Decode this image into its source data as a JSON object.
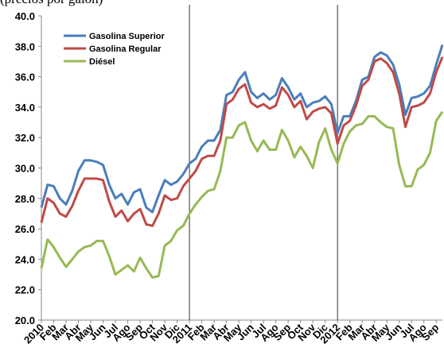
{
  "chart_data": {
    "type": "line",
    "subtitle": "(precios por galón)",
    "categories": [
      "2010",
      null,
      "Feb",
      null,
      "Mar",
      null,
      "Abr",
      null,
      "May",
      null,
      "Jun",
      null,
      "Jul",
      null,
      "Ago",
      null,
      "Sep",
      null,
      "Oct",
      null,
      "Nov",
      null,
      "Dic",
      null,
      "2011",
      null,
      "Feb",
      null,
      "Mar",
      null,
      "Abr",
      null,
      "May",
      null,
      "Jun",
      null,
      "Jul",
      null,
      "Ago",
      null,
      "Sep",
      null,
      "Oct",
      null,
      "Nov",
      null,
      "Dic",
      null,
      "2012",
      null,
      "Feb",
      null,
      "Mar",
      null,
      "Abr",
      null,
      "May",
      null,
      "Jun",
      null,
      "Jul",
      null,
      "Ago",
      null,
      "Sep",
      null
    ],
    "series": [
      {
        "name": "Gasolina Superior",
        "color": "#4a7ebb",
        "values": [
          27.4,
          28.9,
          28.8,
          28.0,
          27.6,
          28.5,
          29.8,
          30.5,
          30.5,
          30.4,
          30.2,
          28.9,
          28.0,
          28.3,
          27.6,
          28.4,
          28.6,
          27.4,
          27.1,
          28.2,
          29.2,
          28.9,
          29.1,
          29.6,
          30.3,
          30.6,
          31.4,
          31.8,
          31.8,
          32.5,
          34.8,
          35.0,
          35.8,
          36.3,
          35.0,
          34.6,
          34.9,
          34.5,
          34.8,
          35.9,
          35.3,
          34.5,
          34.9,
          34.0,
          34.3,
          34.4,
          34.7,
          34.2,
          32.3,
          33.4,
          33.4,
          34.4,
          35.8,
          36.0,
          37.3,
          37.6,
          37.4,
          36.8,
          35.5,
          33.5,
          34.6,
          34.7,
          34.9,
          35.4,
          36.8,
          38.1
        ]
      },
      {
        "name": "Gasolina Regular",
        "color": "#be4b48",
        "values": [
          26.4,
          28.0,
          27.7,
          27.0,
          26.8,
          27.5,
          28.5,
          29.3,
          29.3,
          29.3,
          29.2,
          27.8,
          26.8,
          27.2,
          26.5,
          27.0,
          27.3,
          26.3,
          26.2,
          27.0,
          28.2,
          27.9,
          28.0,
          28.8,
          29.3,
          29.8,
          30.6,
          30.8,
          30.8,
          31.8,
          34.2,
          34.5,
          35.2,
          35.5,
          34.3,
          34.0,
          34.2,
          33.9,
          34.1,
          35.3,
          34.8,
          34.0,
          34.4,
          33.2,
          33.7,
          33.9,
          34.0,
          33.6,
          31.6,
          32.8,
          33.1,
          34.1,
          35.4,
          35.8,
          37.0,
          37.2,
          36.9,
          36.3,
          34.9,
          32.7,
          34.0,
          34.1,
          34.3,
          34.9,
          36.3,
          37.3
        ]
      },
      {
        "name": "Diésel",
        "color": "#98b954",
        "values": [
          23.4,
          25.3,
          24.8,
          24.1,
          23.5,
          24.0,
          24.5,
          24.8,
          24.9,
          25.2,
          25.2,
          24.2,
          23.0,
          23.3,
          23.6,
          23.2,
          24.1,
          23.4,
          22.8,
          22.9,
          24.9,
          25.2,
          25.9,
          26.2,
          27.0,
          27.6,
          28.1,
          28.5,
          28.6,
          29.8,
          32.0,
          32.0,
          32.8,
          33.0,
          31.8,
          31.1,
          31.8,
          31.2,
          31.2,
          32.5,
          31.8,
          30.7,
          31.4,
          30.8,
          30.0,
          31.7,
          32.6,
          31.2,
          30.3,
          31.6,
          32.4,
          32.8,
          32.9,
          33.4,
          33.4,
          33.0,
          32.7,
          32.6,
          30.2,
          28.8,
          28.8,
          29.9,
          30.2,
          31.0,
          33.1,
          33.7
        ]
      }
    ],
    "ylim": [
      20,
      40
    ],
    "yticks": [
      {
        "value": 20,
        "label": "20.0"
      },
      {
        "value": 22,
        "label": "22.0"
      },
      {
        "value": 24,
        "label": "24.0"
      },
      {
        "value": 26,
        "label": "26.0"
      },
      {
        "value": 28,
        "label": "28.0"
      },
      {
        "value": 30,
        "label": "30.0"
      },
      {
        "value": 32,
        "label": "32.0"
      },
      {
        "value": 34,
        "label": "34.0"
      },
      {
        "value": 36,
        "label": "36.0"
      },
      {
        "value": 38,
        "label": "38.0"
      },
      {
        "value": 40,
        "label": "40.0"
      }
    ],
    "vlines": [
      "2011",
      "2012"
    ],
    "legend": "upper left"
  }
}
